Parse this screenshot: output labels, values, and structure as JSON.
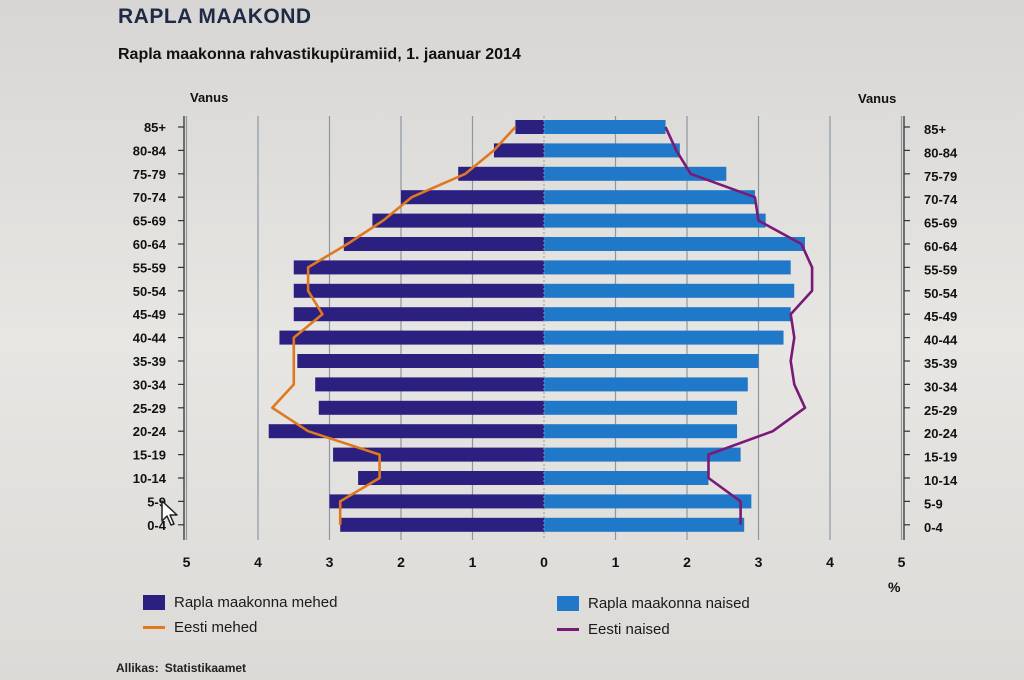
{
  "heading": "RAPLA MAAKOND",
  "chart_data": {
    "type": "bar",
    "title": "Rapla maakonna rahvastikupüramiid, 1. jaanuar 2014",
    "left_axis_label": "Vanus",
    "right_axis_label": "Vanus",
    "x_unit_label": "%",
    "categories": [
      "85+",
      "80-84",
      "75-79",
      "70-74",
      "65-69",
      "60-64",
      "55-59",
      "50-54",
      "45-49",
      "40-44",
      "35-39",
      "30-34",
      "25-29",
      "20-24",
      "15-19",
      "10-14",
      "5-9",
      "0-4"
    ],
    "x_ticks": [
      "5",
      "4",
      "3",
      "2",
      "1",
      "0",
      "1",
      "2",
      "3",
      "4",
      "5"
    ],
    "xlim": [
      -5,
      5
    ],
    "grid": true,
    "series": [
      {
        "name": "Rapla maakonna mehed",
        "kind": "bar",
        "side": "left",
        "color": "#2b1f80",
        "values": [
          0.4,
          0.7,
          1.2,
          2.0,
          2.4,
          2.8,
          3.5,
          3.5,
          3.5,
          3.7,
          3.45,
          3.2,
          3.15,
          3.85,
          2.95,
          2.6,
          3.0,
          2.85
        ]
      },
      {
        "name": "Rapla maakonna naised",
        "kind": "bar",
        "side": "right",
        "color": "#1f78c8",
        "values": [
          1.7,
          1.9,
          2.55,
          2.95,
          3.1,
          3.65,
          3.45,
          3.5,
          3.45,
          3.35,
          3.0,
          2.85,
          2.7,
          2.7,
          2.75,
          2.3,
          2.9,
          2.8
        ]
      },
      {
        "name": "Eesti mehed",
        "kind": "line",
        "side": "left",
        "color": "#e07820",
        "values": [
          0.4,
          0.7,
          1.1,
          1.85,
          2.25,
          2.75,
          3.3,
          3.3,
          3.1,
          3.5,
          3.5,
          3.5,
          3.8,
          3.3,
          2.3,
          2.3,
          2.85,
          2.85
        ]
      },
      {
        "name": "Eesti naised",
        "kind": "line",
        "side": "right",
        "color": "#7a1a78",
        "values": [
          1.7,
          1.85,
          2.05,
          2.95,
          3.0,
          3.6,
          3.75,
          3.75,
          3.45,
          3.5,
          3.45,
          3.5,
          3.65,
          3.2,
          2.3,
          2.3,
          2.75,
          2.75
        ]
      }
    ]
  },
  "source": {
    "label": "Allikas:",
    "value": "Statistikaamet"
  }
}
